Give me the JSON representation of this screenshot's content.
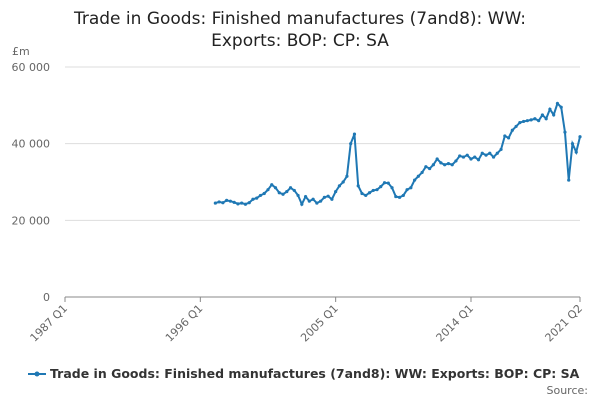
{
  "chart_data": {
    "type": "line",
    "title": "Trade in Goods: Finished manufactures (7and8): WW: Exports: BOP: CP: SA",
    "y_unit": "£m",
    "source": "Source:",
    "categories": [
      "1987 Q1",
      null,
      null,
      null,
      null,
      null,
      null,
      null,
      null,
      null,
      null,
      null,
      null,
      null,
      null,
      null,
      null,
      null,
      null,
      null,
      null,
      null,
      null,
      null,
      null,
      null,
      null,
      null,
      null,
      null,
      null,
      null,
      null,
      null,
      null,
      null,
      "1996 Q1",
      null,
      null,
      null,
      null,
      null,
      null,
      null,
      null,
      null,
      null,
      null,
      null,
      null,
      null,
      null,
      null,
      null,
      null,
      null,
      null,
      null,
      null,
      null,
      null,
      null,
      null,
      null,
      null,
      null,
      null,
      null,
      null,
      null,
      null,
      null,
      "2005 Q1",
      null,
      null,
      null,
      null,
      null,
      null,
      null,
      null,
      null,
      null,
      null,
      null,
      null,
      null,
      null,
      null,
      null,
      null,
      null,
      null,
      null,
      null,
      null,
      null,
      null,
      null,
      null,
      null,
      null,
      null,
      null,
      null,
      null,
      null,
      null,
      "2014 Q1",
      null,
      null,
      null,
      null,
      null,
      null,
      null,
      null,
      null,
      null,
      null,
      null,
      null,
      null,
      null,
      null,
      null,
      null,
      null,
      null,
      null,
      null,
      null,
      null,
      null,
      null,
      null,
      null,
      "2021 Q2"
    ],
    "series": [
      {
        "name": "Trade in Goods: Finished manufactures (7and8): WW: Exports: BOP: CP: SA",
        "color": "#1f78b4",
        "values": [
          null,
          null,
          null,
          null,
          null,
          null,
          null,
          null,
          null,
          null,
          null,
          null,
          null,
          null,
          null,
          null,
          null,
          null,
          null,
          null,
          null,
          null,
          null,
          null,
          null,
          null,
          null,
          null,
          null,
          null,
          null,
          null,
          null,
          null,
          null,
          null,
          null,
          null,
          null,
          null,
          24500,
          24800,
          24600,
          25200,
          25000,
          24700,
          24300,
          24500,
          24200,
          24600,
          25500,
          25800,
          26500,
          27000,
          28000,
          29300,
          28500,
          27200,
          26800,
          27500,
          28500,
          27800,
          26500,
          24200,
          26200,
          25000,
          25500,
          24500,
          25000,
          26000,
          26300,
          25500,
          27500,
          29000,
          30000,
          31500,
          40000,
          42500,
          29000,
          27000,
          26500,
          27200,
          27800,
          28000,
          28800,
          29800,
          29700,
          28500,
          26200,
          26000,
          26500,
          28000,
          28500,
          30500,
          31500,
          32500,
          34000,
          33500,
          34500,
          36000,
          35000,
          34500,
          34800,
          34500,
          35500,
          36800,
          36500,
          37000,
          36000,
          36500,
          35800,
          37500,
          37000,
          37500,
          36500,
          37500,
          38500,
          42000,
          41500,
          43500,
          44500,
          45500,
          45800,
          46000,
          46200,
          46500,
          46000,
          47500,
          46500,
          49000,
          47500,
          50500,
          49500,
          43000,
          30500,
          40000,
          37800,
          41800
        ]
      }
    ],
    "ylim": [
      0,
      60000
    ],
    "yticks": [
      0,
      {
        "value": 20000,
        "label": "20 000"
      },
      {
        "value": 40000,
        "label": "40 000"
      },
      {
        "value": 60000,
        "label": "60 000"
      }
    ],
    "grid": true
  }
}
